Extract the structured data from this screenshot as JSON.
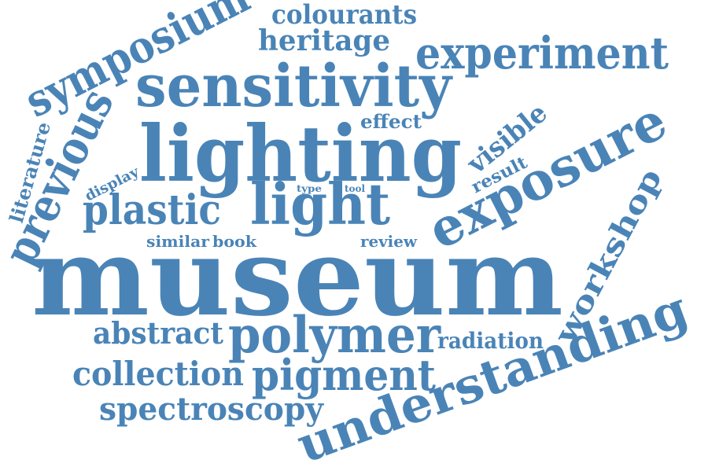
{
  "color": "#4a84b7",
  "words": {
    "colourants": "colourants",
    "heritage": "heritage",
    "symposium": "symposium",
    "experiment": "experiment",
    "sensitivity": "sensitivity",
    "previous": "previous",
    "literature": "literature",
    "lighting": "lighting",
    "effect": "effect",
    "visible": "visible",
    "exposure": "exposure",
    "result": "result",
    "display": "display",
    "type": "type",
    "tool": "tool",
    "plastic": "plastic",
    "light": "light",
    "workshop": "workshop",
    "similar": "similar",
    "book": "book",
    "review": "review",
    "museum": "museum",
    "abstract": "abstract",
    "polymer": "polymer",
    "radiation": "radiation",
    "understanding": "understanding",
    "collection": "collection",
    "pigment": "pigment",
    "spectroscopy": "spectroscopy"
  }
}
